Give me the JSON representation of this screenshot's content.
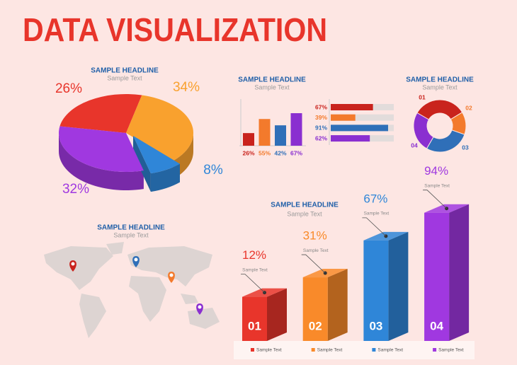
{
  "title": "DATA VISUALIZATION",
  "chart_data": [
    {
      "type": "pie",
      "title": "SAMPLE HEADLINE",
      "subtitle": "Sample Text",
      "values": [
        26,
        34,
        8,
        32
      ],
      "value_labels": [
        "26%",
        "34%",
        "8%",
        "32%"
      ],
      "colors": [
        "#e8352b",
        "#f9a12e",
        "#2f86d8",
        "#a038e0"
      ]
    },
    {
      "type": "bar",
      "title": "SAMPLE HEADLINE",
      "subtitle": "Sample Text",
      "values": [
        26,
        55,
        42,
        67
      ],
      "value_labels": [
        "26%",
        "55%",
        "42%",
        "67%"
      ],
      "colors": [
        "#c9231d",
        "#f37a2c",
        "#2f6fb8",
        "#8a2fd0"
      ]
    },
    {
      "type": "hbar",
      "values": [
        67,
        39,
        91,
        62
      ],
      "value_labels": [
        "67%",
        "39%",
        "91%",
        "62%"
      ],
      "colors": [
        "#c9231d",
        "#f37a2c",
        "#2f6fb8",
        "#8a2fd0"
      ]
    },
    {
      "type": "donut",
      "title": "SAMPLE HEADLINE",
      "subtitle": "Sample Text",
      "categories": [
        "01",
        "02",
        "03",
        "04"
      ],
      "values": [
        33,
        14,
        28,
        25
      ],
      "colors": [
        "#c9231d",
        "#f37a2c",
        "#2f6fb8",
        "#8a2fd0"
      ]
    },
    {
      "type": "bar3d",
      "title": "SAMPLE HEADLINE",
      "subtitle": "Sample Text",
      "categories": [
        "01",
        "02",
        "03",
        "04"
      ],
      "values": [
        12,
        31,
        67,
        94
      ],
      "value_labels": [
        "12%",
        "31%",
        "67%",
        "94%"
      ],
      "annotations": [
        "Sample Text",
        "Sample Text",
        "Sample Text",
        "Sample Text"
      ],
      "legend": [
        "Sample Text",
        "Sample Text",
        "Sample Text",
        "Sample Text"
      ],
      "colors": [
        "#e8352b",
        "#f98a2a",
        "#2f86d8",
        "#a038e0"
      ]
    }
  ],
  "map": {
    "title": "SAMPLE HEADLINE",
    "subtitle": "Sample Text"
  }
}
